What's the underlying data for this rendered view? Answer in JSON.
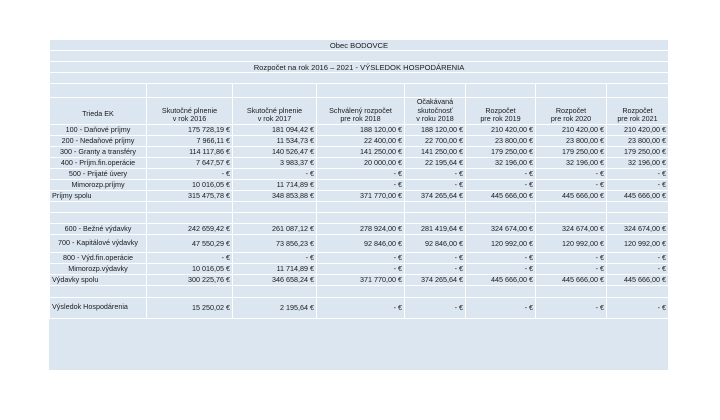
{
  "title": "Obec BODOVCE",
  "subtitle": "Rozpočet na rok 2016  – 2021  - VÝSLEDOK HOSPODÁRENIA",
  "headers": {
    "col0": "Trieda EK",
    "col1": [
      "Skutočné plnenie",
      "v rok 2016"
    ],
    "col2": [
      "Skutočné plnenie",
      "v rok 2017"
    ],
    "col3": [
      "Schválený rozpočet",
      "pre rok 2018"
    ],
    "col4": [
      "Očakávaná",
      "skutočnosť",
      "v roku 2018"
    ],
    "col5": [
      "Rozpočet",
      "pre rok 2019"
    ],
    "col6": [
      "Rozpočet",
      "pre rok 2020"
    ],
    "col7": [
      "Rozpočet",
      "pre rok 2021"
    ]
  },
  "income_rows": [
    {
      "label": "100 - Daňové príjmy",
      "values": [
        "175 728,19 €",
        "181 094,42 €",
        "188 120,00 €",
        "188 120,00 €",
        "210 420,00 €",
        "210 420,00 €",
        "210 420,00 €"
      ]
    },
    {
      "label": "200 - Nedaňové príjmy",
      "values": [
        "7 966,11 €",
        "11 534,73 €",
        "22 400,00 €",
        "22 700,00 €",
        "23 800,00 €",
        "23 800,00 €",
        "23 800,00 €"
      ]
    },
    {
      "label": "300 - Granty a transféry",
      "values": [
        "114 117,86 €",
        "140 526,47 €",
        "141 250,00 €",
        "141 250,00 €",
        "179 250,00 €",
        "179 250,00 €",
        "179 250,00 €"
      ]
    },
    {
      "label": "400 - Príjm.fin.operácie",
      "values": [
        "7 647,57 €",
        "3 983,37 €",
        "20 000,00 €",
        "22 195,64 €",
        "32 196,00 €",
        "32 196,00 €",
        "32 196,00 €"
      ]
    },
    {
      "label": "500 - Prijaté úvery",
      "values": [
        "- €",
        "- €",
        "- €",
        "- €",
        "- €",
        "- €",
        "- €"
      ]
    },
    {
      "label": "Mimorozp.príjmy",
      "values": [
        "10 016,05 €",
        "11 714,89 €",
        "- €",
        "- €",
        "- €",
        "- €",
        "- €"
      ]
    }
  ],
  "income_total": {
    "label": "Príjmy spolu",
    "values": [
      "315 475,78 €",
      "348 853,88 €",
      "371 770,00 €",
      "374 265,64 €",
      "445 666,00 €",
      "445 666,00 €",
      "445 666,00 €"
    ]
  },
  "expense_rows": [
    {
      "label": "600 - Bežné výdavky",
      "values": [
        "242 659,42 €",
        "261 087,12 €",
        "278 924,00 €",
        "281 419,64 €",
        "324 674,00 €",
        "324 674,00 €",
        "324 674,00 €"
      ]
    },
    {
      "label": "700 - Kapitálové výdavky",
      "values": [
        "47 550,29 €",
        "73 856,23 €",
        "92 846,00 €",
        "92 846,00 €",
        "120 992,00 €",
        "120 992,00 €",
        "120 992,00 €"
      ]
    },
    {
      "label": "800 - Výd.fin.operácie",
      "values": [
        "- €",
        "- €",
        "- €",
        "- €",
        "- €",
        "- €",
        "- €"
      ]
    },
    {
      "label": "Mimorozp.výdavky",
      "values": [
        "10 016,05 €",
        "11 714,89 €",
        "- €",
        "- €",
        "- €",
        "- €",
        "- €"
      ]
    }
  ],
  "expense_total": {
    "label": "Výdavky spolu",
    "values": [
      "300 225,76 €",
      "346 658,24 €",
      "371 770,00 €",
      "374 265,64 €",
      "445 666,00 €",
      "445 666,00 €",
      "445 666,00 €"
    ]
  },
  "result": {
    "label": "Výsledok Hospodárenia",
    "values": [
      "15 250,02 €",
      "2 195,64 €",
      "- €",
      "- €",
      "- €",
      "- €",
      "- €"
    ]
  }
}
